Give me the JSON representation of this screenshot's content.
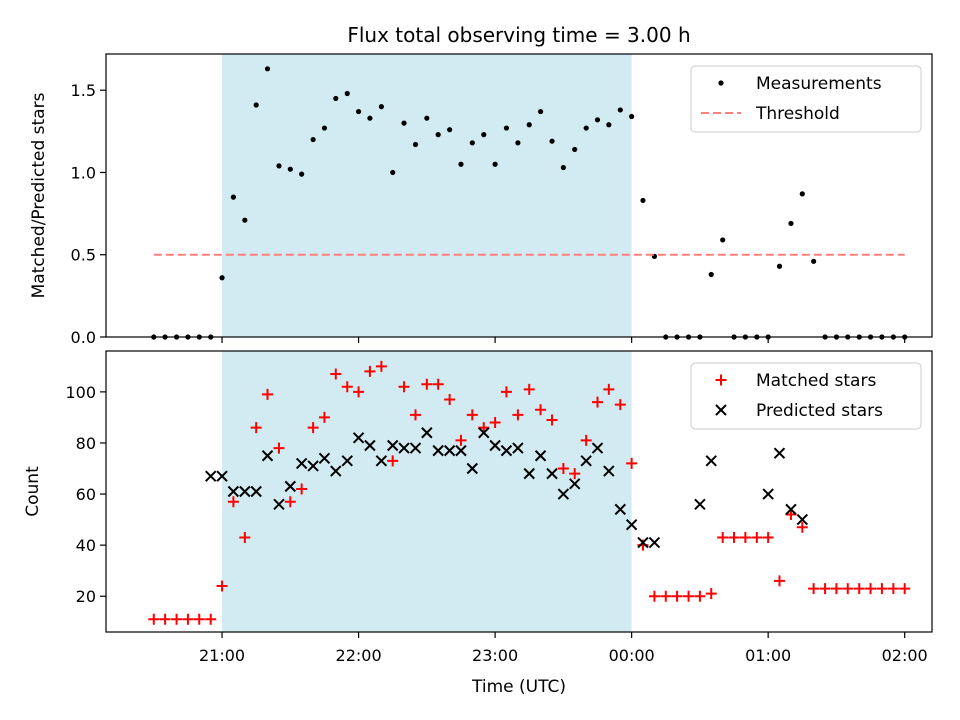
{
  "chart_data": {
    "type": "scatter",
    "title": "Flux total observing time = 3.00 h",
    "xlabel": "Time (UTC)",
    "x_unit": "hours UTC (values past 24 are after midnight)",
    "xlim": [
      20.15,
      26.2
    ],
    "xticks": [
      21,
      22,
      23,
      24,
      25,
      26
    ],
    "xtick_labels": [
      "21:00",
      "22:00",
      "23:00",
      "00:00",
      "01:00",
      "02:00"
    ],
    "shaded_interval": [
      21.0,
      24.0
    ],
    "shade_color": "#add8e6",
    "panels": [
      {
        "ylabel": "Matched/Predicted stars",
        "ylim": [
          0,
          1.72
        ],
        "yticks": [
          0.0,
          0.5,
          1.0,
          1.5
        ],
        "ytick_labels": [
          "0.0",
          "0.5",
          "1.0",
          "1.5"
        ],
        "legend_position": "top-right",
        "series": [
          {
            "name": "Measurements",
            "marker": "dot",
            "color": "#000000",
            "x": [
              20.5,
              20.583,
              20.667,
              20.75,
              20.833,
              20.917,
              21.0,
              21.083,
              21.167,
              21.25,
              21.333,
              21.417,
              21.5,
              21.583,
              21.667,
              21.75,
              21.833,
              21.917,
              22.0,
              22.083,
              22.167,
              22.25,
              22.333,
              22.417,
              22.5,
              22.583,
              22.667,
              22.75,
              22.833,
              22.917,
              23.0,
              23.083,
              23.167,
              23.25,
              23.333,
              23.417,
              23.5,
              23.583,
              23.667,
              23.75,
              23.833,
              23.917,
              24.0,
              24.083,
              24.167,
              24.25,
              24.333,
              24.417,
              24.5,
              24.583,
              24.667,
              24.75,
              24.833,
              24.917,
              25.0,
              25.083,
              25.167,
              25.25,
              25.333,
              25.417,
              25.5,
              25.583,
              25.667,
              25.75,
              25.833,
              25.917,
              26.0
            ],
            "y": [
              0,
              0,
              0,
              0,
              0,
              0,
              0.36,
              0.85,
              0.71,
              1.41,
              1.63,
              1.04,
              1.02,
              0.99,
              1.2,
              1.27,
              1.45,
              1.48,
              1.37,
              1.33,
              1.4,
              1.0,
              1.3,
              1.17,
              1.33,
              1.23,
              1.26,
              1.05,
              1.18,
              1.23,
              1.05,
              1.27,
              1.18,
              1.29,
              1.37,
              1.19,
              1.03,
              1.14,
              1.27,
              1.32,
              1.29,
              1.38,
              1.34,
              0.83,
              0.49,
              0,
              0,
              0,
              0,
              0.38,
              0.59,
              0,
              0,
              0,
              0,
              0.43,
              0.69,
              0.87,
              0.46,
              0,
              0,
              0,
              0,
              0,
              0,
              0,
              0
            ]
          },
          {
            "name": "Threshold",
            "style": "dashed-line",
            "color": "#ff7f7f",
            "x": [
              20.5,
              26.0
            ],
            "y": [
              0.5,
              0.5
            ]
          }
        ]
      },
      {
        "ylabel": "Count",
        "ylim": [
          6,
          116
        ],
        "yticks": [
          20,
          40,
          60,
          80,
          100
        ],
        "ytick_labels": [
          "20",
          "40",
          "60",
          "80",
          "100"
        ],
        "legend_position": "top-right",
        "series": [
          {
            "name": "Matched stars",
            "marker": "plus",
            "color": "#ff0000",
            "x": [
              20.5,
              20.583,
              20.667,
              20.75,
              20.833,
              20.917,
              21.0,
              21.083,
              21.167,
              21.25,
              21.333,
              21.417,
              21.5,
              21.583,
              21.667,
              21.75,
              21.833,
              21.917,
              22.0,
              22.083,
              22.167,
              22.25,
              22.333,
              22.417,
              22.5,
              22.583,
              22.667,
              22.75,
              22.833,
              22.917,
              23.0,
              23.083,
              23.167,
              23.25,
              23.333,
              23.417,
              23.5,
              23.583,
              23.667,
              23.75,
              23.833,
              23.917,
              24.0,
              24.083,
              24.167,
              24.25,
              24.333,
              24.417,
              24.5,
              24.583,
              24.667,
              24.75,
              24.833,
              24.917,
              25.0,
              25.083,
              25.167,
              25.25,
              25.333,
              25.417,
              25.5,
              25.583,
              25.667,
              25.75,
              25.833,
              25.917,
              26.0
            ],
            "y": [
              11,
              11,
              11,
              11,
              11,
              11,
              24,
              57,
              43,
              86,
              99,
              78,
              57,
              62,
              86,
              90,
              107,
              102,
              100,
              108,
              110,
              73,
              102,
              91,
              103,
              103,
              97,
              81,
              91,
              86,
              88,
              100,
              91,
              101,
              93,
              89,
              70,
              68,
              81,
              96,
              101,
              95,
              72,
              40,
              20,
              20,
              20,
              20,
              20,
              21,
              43,
              43,
              43,
              43,
              43,
              26,
              52,
              47,
              23,
              23,
              23,
              23,
              23,
              23,
              23,
              23,
              23
            ]
          },
          {
            "name": "Predicted stars",
            "marker": "x",
            "color": "#000000",
            "x": [
              20.917,
              21.0,
              21.083,
              21.167,
              21.25,
              21.333,
              21.417,
              21.5,
              21.583,
              21.667,
              21.75,
              21.833,
              21.917,
              22.0,
              22.083,
              22.167,
              22.25,
              22.333,
              22.417,
              22.5,
              22.583,
              22.667,
              22.75,
              22.833,
              22.917,
              23.0,
              23.083,
              23.167,
              23.25,
              23.333,
              23.417,
              23.5,
              23.583,
              23.667,
              23.75,
              23.833,
              23.917,
              24.0,
              24.083,
              24.167,
              24.5,
              24.583,
              25.0,
              25.083,
              25.167,
              25.25
            ],
            "y": [
              67,
              67,
              61,
              61,
              61,
              75,
              56,
              63,
              72,
              71,
              74,
              69,
              73,
              82,
              79,
              73,
              79,
              78,
              78,
              84,
              77,
              77,
              77,
              70,
              84,
              79,
              77,
              78,
              68,
              75,
              68,
              60,
              64,
              73,
              78,
              69,
              54,
              48,
              41,
              41,
              56,
              73,
              60,
              76,
              54,
              50
            ]
          }
        ]
      }
    ]
  }
}
